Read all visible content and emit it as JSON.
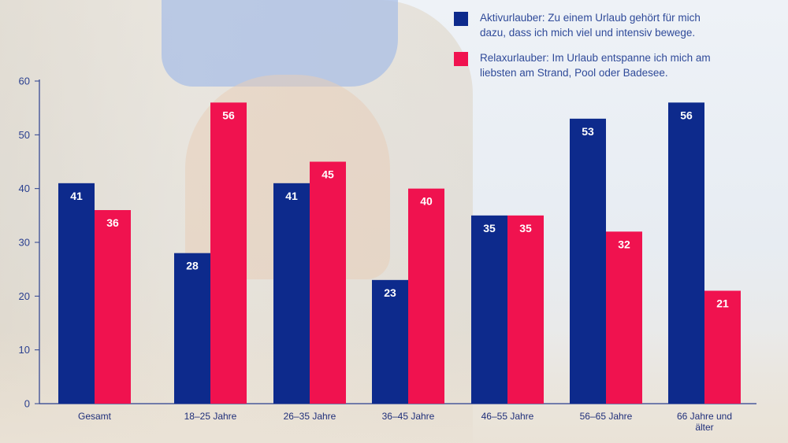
{
  "chart_data": {
    "type": "bar",
    "categories": [
      "Gesamt",
      "18–25 Jahre",
      "26–35 Jahre",
      "36–45 Jahre",
      "46–55 Jahre",
      "56–65 Jahre",
      [
        "66 Jahre und",
        "älter"
      ]
    ],
    "series": [
      {
        "name": [
          "Aktivurlauber: Zu einem Urlaub gehört für mich",
          "dazu, dass ich mich viel und intensiv bewege."
        ],
        "values": [
          41,
          28,
          41,
          23,
          35,
          53,
          56
        ],
        "color": "#0d2a8c"
      },
      {
        "name": [
          "Relaxurlauber: Im Urlaub entspanne ich mich am",
          "liebsten am Strand, Pool oder Badesee."
        ],
        "values": [
          36,
          56,
          45,
          40,
          35,
          32,
          21
        ],
        "color": "#f0124f"
      }
    ],
    "ylim": [
      0,
      60
    ],
    "yticks": [
      0,
      10,
      20,
      30,
      40,
      50,
      60
    ],
    "axis_color": "#2a3f8f",
    "legend_position": "top-right",
    "grid": false
  }
}
